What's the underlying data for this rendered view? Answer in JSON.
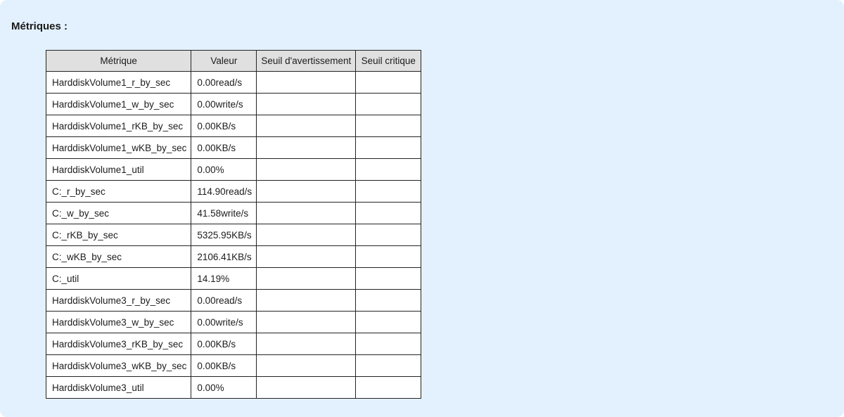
{
  "page": {
    "title": "Métriques :"
  },
  "colors": {
    "panel_background": "#e2f1fd",
    "page_background": "#ffffff",
    "table_header_background": "#e0e0e0",
    "table_border": "#232323",
    "text": "#1c1c1c"
  },
  "table": {
    "columns": {
      "metric": "Métrique",
      "value": "Valeur",
      "warning": "Seuil d'avertissement",
      "critical": "Seuil critique"
    },
    "rows": [
      {
        "metric": "HarddiskVolume1_r_by_sec",
        "value": "0.00read/s",
        "warning": "",
        "critical": ""
      },
      {
        "metric": "HarddiskVolume1_w_by_sec",
        "value": "0.00write/s",
        "warning": "",
        "critical": ""
      },
      {
        "metric": "HarddiskVolume1_rKB_by_sec",
        "value": "0.00KB/s",
        "warning": "",
        "critical": ""
      },
      {
        "metric": "HarddiskVolume1_wKB_by_sec",
        "value": "0.00KB/s",
        "warning": "",
        "critical": ""
      },
      {
        "metric": "HarddiskVolume1_util",
        "value": "0.00%",
        "warning": "",
        "critical": ""
      },
      {
        "metric": "C:_r_by_sec",
        "value": "114.90read/s",
        "warning": "",
        "critical": ""
      },
      {
        "metric": "C:_w_by_sec",
        "value": "41.58write/s",
        "warning": "",
        "critical": ""
      },
      {
        "metric": "C:_rKB_by_sec",
        "value": "5325.95KB/s",
        "warning": "",
        "critical": ""
      },
      {
        "metric": "C:_wKB_by_sec",
        "value": "2106.41KB/s",
        "warning": "",
        "critical": ""
      },
      {
        "metric": "C:_util",
        "value": "14.19%",
        "warning": "",
        "critical": ""
      },
      {
        "metric": "HarddiskVolume3_r_by_sec",
        "value": "0.00read/s",
        "warning": "",
        "critical": ""
      },
      {
        "metric": "HarddiskVolume3_w_by_sec",
        "value": "0.00write/s",
        "warning": "",
        "critical": ""
      },
      {
        "metric": "HarddiskVolume3_rKB_by_sec",
        "value": "0.00KB/s",
        "warning": "",
        "critical": ""
      },
      {
        "metric": "HarddiskVolume3_wKB_by_sec",
        "value": "0.00KB/s",
        "warning": "",
        "critical": ""
      },
      {
        "metric": "HarddiskVolume3_util",
        "value": "0.00%",
        "warning": "",
        "critical": ""
      }
    ]
  }
}
